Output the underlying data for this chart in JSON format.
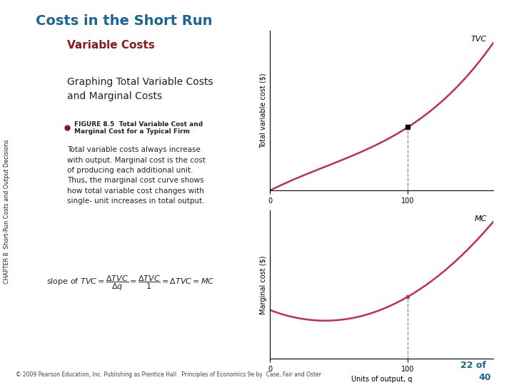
{
  "title": "Costs in the Short Run",
  "subtitle": "Variable Costs",
  "subheading": "Graphing Total Variable Costs\nand Marginal Costs",
  "figure_label": "FIGURE 8.5",
  "figure_title": "Total Variable Cost and\nMarginal Cost for a Typical Firm",
  "body_text": "Total variable costs always increase\nwith output. Marginal cost is the cost\nof producing each additional unit.\nThus, the marginal cost curve shows\nhow total variable cost changes with\nsingle- unit increases in total output.",
  "tvc_label": "TVC",
  "mc_label": "MC",
  "tvc_ylabel": "Total variable cost ($)",
  "mc_ylabel": "Marginal cost ($)",
  "xlabel": "Units of output, q",
  "curve_color": "#c0304a",
  "dot_color": "#000000",
  "title_color": "#1a6496",
  "subtitle_color": "#8b1a1a",
  "chapter_text": "CHAPTER 8  Short-Run Costs and Output Decisions",
  "footer_text": "© 2009 Pearson Education, Inc. Publishing as Prentice Hall   Principles of Economics 9e by  Case, Fair and Oster",
  "page_text": "22 of",
  "page_num": "40",
  "bg_color": "#ffffff",
  "axes_bg": "#ffffff",
  "figure_bullet_color": "#8b1a1a"
}
